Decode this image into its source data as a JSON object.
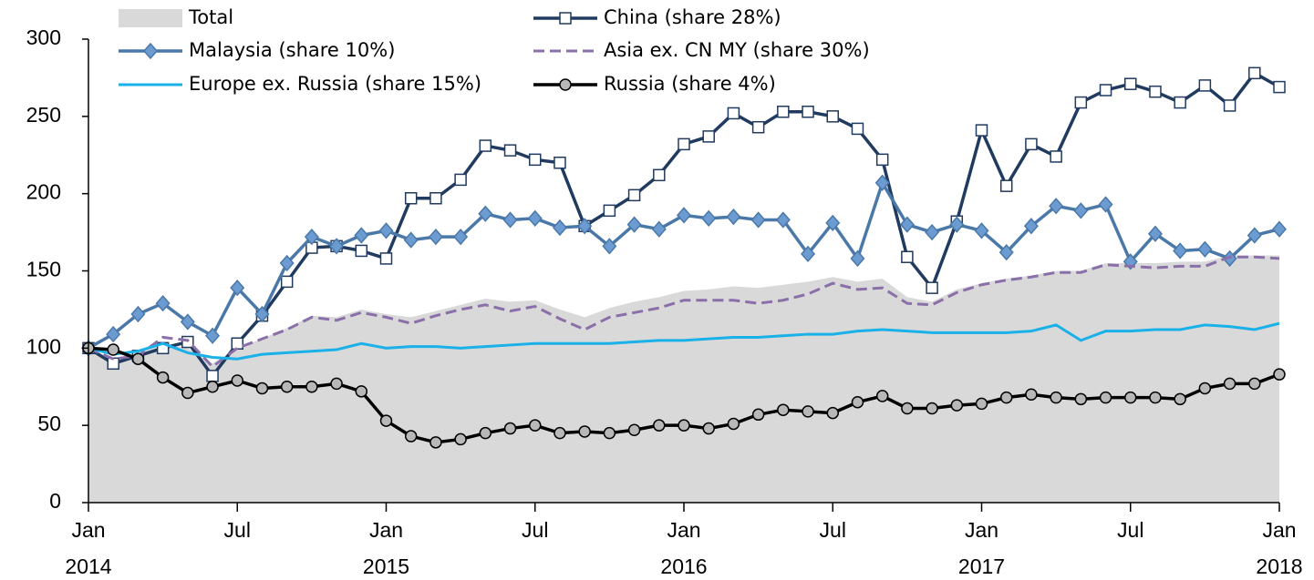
{
  "chart_data": {
    "type": "line",
    "categories": [
      "Jan",
      null,
      null,
      null,
      null,
      null,
      "Jul",
      null,
      null,
      null,
      null,
      null,
      "Jan",
      null,
      null,
      null,
      null,
      null,
      "Jul",
      null,
      null,
      null,
      null,
      null,
      "Jan",
      null,
      null,
      null,
      null,
      null,
      "Jul",
      null,
      null,
      null,
      null,
      null,
      "Jan",
      null,
      null,
      null,
      null,
      null,
      "Jul",
      null,
      null,
      null,
      null,
      null,
      "Jan"
    ],
    "year_labels": [
      "2014",
      "2015",
      "2016",
      "2017",
      "2018"
    ],
    "ylim": [
      0,
      300
    ],
    "yticks": [
      0,
      50,
      100,
      150,
      200,
      250,
      300
    ],
    "series": [
      {
        "name": "Total",
        "kind": "area",
        "color": "#d9d9d9",
        "values": [
          100,
          93,
          97,
          103,
          100,
          90,
          100,
          106,
          113,
          121,
          120,
          125,
          122,
          120,
          124,
          128,
          132,
          130,
          131,
          125,
          120,
          126,
          130,
          133,
          137,
          138,
          140,
          139,
          141,
          143,
          146,
          143,
          145,
          133,
          130,
          138,
          142,
          145,
          147,
          150,
          150,
          155,
          155,
          155,
          156,
          156,
          160,
          160,
          160
        ]
      },
      {
        "name": "China (share 28%)",
        "color": "#203a60",
        "marker": "square",
        "values": [
          100,
          90,
          95,
          100,
          104,
          82,
          103,
          121,
          143,
          165,
          166,
          163,
          158,
          197,
          197,
          209,
          231,
          228,
          222,
          220,
          179,
          189,
          199,
          212,
          232,
          237,
          252,
          243,
          253,
          253,
          250,
          242,
          222,
          159,
          139,
          182,
          241,
          205,
          232,
          224,
          259,
          267,
          271,
          266,
          259,
          270,
          257,
          278,
          269
        ]
      },
      {
        "name": "Malaysia (share 10%)",
        "color": "#4a78a8",
        "marker": "diamond",
        "values": [
          100,
          109,
          122,
          129,
          117,
          108,
          139,
          122,
          155,
          172,
          166,
          173,
          176,
          170,
          172,
          172,
          187,
          183,
          184,
          178,
          179,
          166,
          180,
          177,
          186,
          184,
          185,
          183,
          183,
          161,
          181,
          158,
          207,
          180,
          175,
          180,
          176,
          162,
          179,
          192,
          189,
          193,
          156,
          174,
          163,
          164,
          158,
          173,
          177
        ]
      },
      {
        "name": "Asia ex. CN MY (share 30%)",
        "color": "#8a6fa8",
        "dash": true,
        "values": [
          100,
          93,
          95,
          107,
          105,
          88,
          100,
          106,
          112,
          120,
          118,
          123,
          120,
          116,
          121,
          125,
          128,
          124,
          127,
          119,
          112,
          120,
          123,
          126,
          131,
          131,
          131,
          129,
          131,
          135,
          142,
          138,
          139,
          129,
          128,
          136,
          141,
          144,
          146,
          149,
          149,
          154,
          153,
          152,
          153,
          153,
          159,
          159,
          158
        ]
      },
      {
        "name": "Europe ex. Russia (share 15%)",
        "color": "#1ab0e8",
        "values": [
          100,
          96,
          98,
          103,
          97,
          94,
          93,
          96,
          97,
          98,
          99,
          103,
          100,
          101,
          101,
          100,
          101,
          102,
          103,
          103,
          103,
          103,
          104,
          105,
          105,
          106,
          107,
          107,
          108,
          109,
          109,
          111,
          112,
          111,
          110,
          110,
          110,
          110,
          111,
          115,
          105,
          111,
          111,
          112,
          112,
          115,
          114,
          112,
          116
        ]
      },
      {
        "name": "Russia (share 4%)",
        "color": "#000000",
        "marker": "circle",
        "values": [
          100,
          99,
          93,
          81,
          71,
          75,
          79,
          74,
          75,
          75,
          77,
          72,
          53,
          43,
          39,
          41,
          45,
          48,
          50,
          45,
          46,
          45,
          47,
          50,
          50,
          48,
          51,
          57,
          60,
          59,
          58,
          65,
          69,
          61,
          61,
          63,
          64,
          68,
          70,
          68,
          67,
          68,
          68,
          68,
          67,
          74,
          77,
          77,
          83
        ]
      }
    ]
  }
}
